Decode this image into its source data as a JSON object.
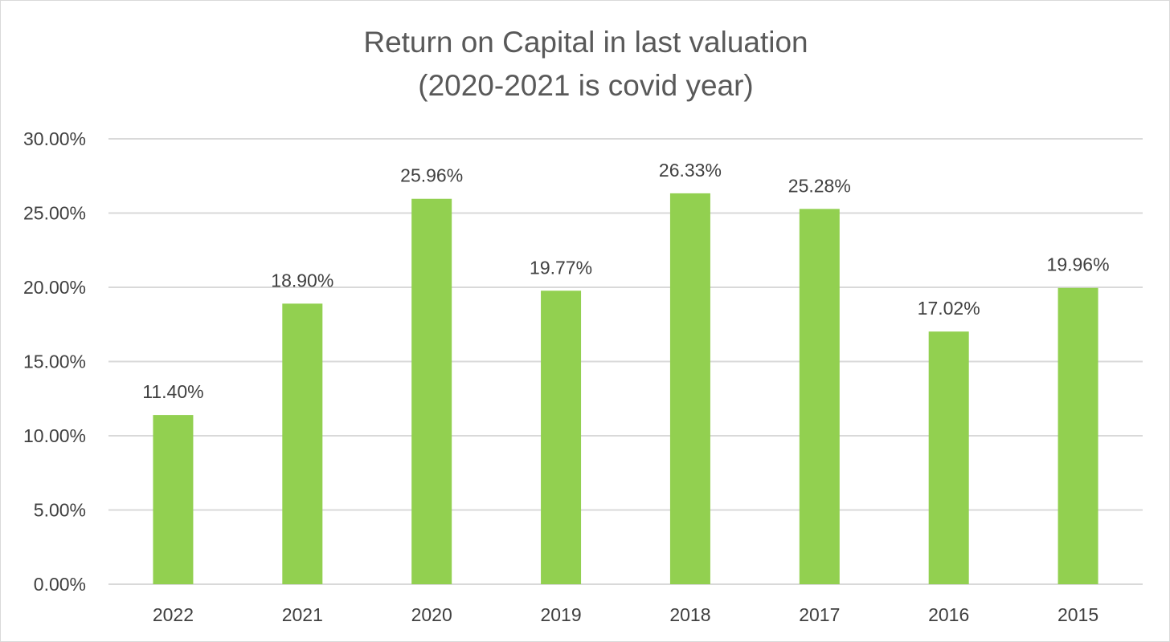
{
  "chart_data": {
    "type": "bar",
    "title": "Return on Capital in last valuation",
    "subtitle": "(2020-2021 is covid year)",
    "categories": [
      "2022",
      "2021",
      "2020",
      "2019",
      "2018",
      "2017",
      "2016",
      "2015"
    ],
    "values": [
      11.4,
      18.9,
      25.96,
      19.77,
      26.33,
      25.28,
      17.02,
      19.96
    ],
    "data_labels": [
      "11.40%",
      "18.90%",
      "25.96%",
      "19.77%",
      "26.33%",
      "25.28%",
      "17.02%",
      "19.96%"
    ],
    "y_ticks": [
      0,
      5,
      10,
      15,
      20,
      25,
      30
    ],
    "y_tick_labels": [
      "0.00%",
      "5.00%",
      "10.00%",
      "15.00%",
      "20.00%",
      "25.00%",
      "30.00%"
    ],
    "ylim": [
      0,
      30
    ],
    "xlabel": "",
    "ylabel": "",
    "grid": true,
    "legend": "none",
    "colors": {
      "bar": "#92d050",
      "grid": "#d9d9d9",
      "title": "#595959",
      "text": "#404040",
      "border": "#d9d9d9"
    }
  }
}
